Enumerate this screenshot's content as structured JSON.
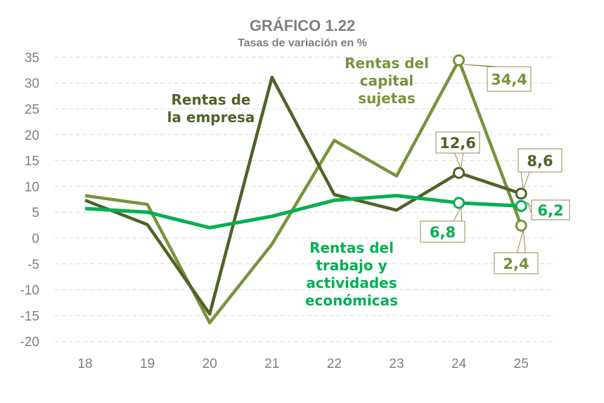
{
  "chart_data": {
    "type": "line",
    "title": "GRÁFICO 1.22",
    "subtitle": "Tasas de variación en %",
    "categories": [
      "18",
      "19",
      "20",
      "21",
      "22",
      "23",
      "24",
      "25"
    ],
    "ylim": [
      -20,
      35
    ],
    "yticks": [
      35,
      30,
      25,
      20,
      15,
      10,
      5,
      0,
      -5,
      -10,
      -15,
      -20
    ],
    "grid": true,
    "series": [
      {
        "name": "Rentas de la empresa",
        "name_lines": [
          "Rentas de",
          "la empresa"
        ],
        "color": "#4f6228",
        "values": [
          7.3,
          2.6,
          -14.7,
          31.1,
          8.4,
          5.4,
          12.6,
          8.6
        ],
        "labels": {
          "6": "12,6",
          "7": "8,6"
        }
      },
      {
        "name": "Rentas del capital sujetas",
        "name_lines": [
          "Rentas del",
          "capital",
          "sujetas"
        ],
        "color": "#77933c",
        "values": [
          8.2,
          6.5,
          -16.4,
          -1.2,
          18.9,
          12.0,
          34.4,
          2.4
        ],
        "labels": {
          "6": "34,4",
          "7": "2,4"
        }
      },
      {
        "name": "Rentas del trabajo y actividades económicas",
        "name_lines": [
          "Rentas del",
          "trabajo y",
          "actividades",
          "económicas"
        ],
        "color": "#00b050",
        "values": [
          5.7,
          5.0,
          2.0,
          4.2,
          7.3,
          8.2,
          6.8,
          6.2
        ],
        "labels": {
          "6": "6,8",
          "7": "6,2"
        }
      }
    ]
  }
}
